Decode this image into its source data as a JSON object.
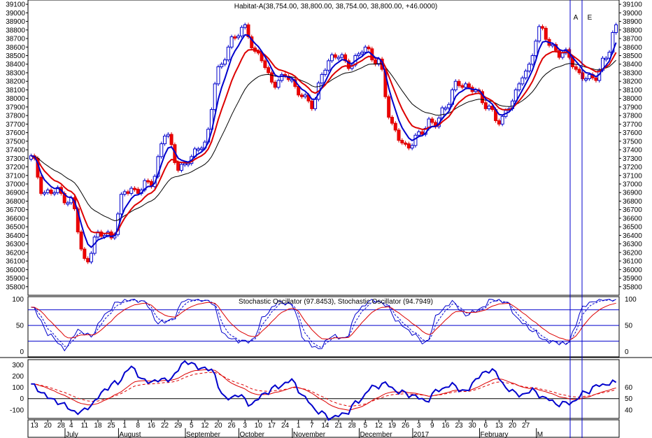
{
  "chart_data": [
    {
      "type": "candlestick",
      "title": "Habitat-A(38,754.00, 38,800.00, 38,754.00, 38,800.00, +46.0000)",
      "ylim": [
        35700,
        39150
      ],
      "y_ticks": [
        35800,
        35900,
        36000,
        36100,
        36200,
        36300,
        36400,
        36500,
        36600,
        36700,
        36800,
        36900,
        37000,
        37100,
        37200,
        37300,
        37400,
        37500,
        37600,
        37700,
        37800,
        37900,
        38000,
        38100,
        38200,
        38300,
        38400,
        38500,
        38600,
        38700,
        38800,
        38900,
        39000,
        39100
      ],
      "marker_labels": [
        "A",
        "E"
      ],
      "anchors": {
        "d": [
          0,
          4,
          8,
          12,
          16,
          20,
          24,
          28,
          32,
          36,
          40,
          44,
          48,
          52,
          56,
          60,
          64,
          68,
          72,
          76,
          80,
          84,
          88,
          92,
          96,
          100,
          104,
          108,
          112,
          116,
          120,
          124,
          128,
          132,
          136,
          140,
          144,
          148,
          152,
          156,
          160,
          164,
          168,
          172,
          175
        ],
        "c": [
          37300,
          36900,
          36900,
          36800,
          36100,
          36400,
          36400,
          36900,
          36950,
          37000,
          37600,
          37200,
          37300,
          37500,
          38300,
          38700,
          38800,
          38500,
          38200,
          38250,
          38100,
          37900,
          38400,
          38500,
          38400,
          38600,
          38400,
          37700,
          37400,
          37600,
          37700,
          37900,
          38200,
          38100,
          37950,
          37700,
          38000,
          38300,
          38800,
          38600,
          38500,
          38300,
          38200,
          38500,
          38800
        ]
      },
      "ma_fast_offset": -250,
      "ma_mid_offset": -320,
      "ma_slow_offset": -480,
      "grid": false
    },
    {
      "type": "line",
      "title": "Stochastic Oscillator (97.8453), Stochastic Oscillator (94.7949)",
      "ylim": [
        -10,
        105
      ],
      "y_ticks": [
        0,
        50,
        100
      ],
      "h_lines": [
        20,
        50,
        80
      ],
      "anchors": {
        "d": [
          0,
          6,
          10,
          14,
          18,
          22,
          26,
          30,
          34,
          38,
          42,
          46,
          50,
          54,
          58,
          62,
          66,
          70,
          74,
          78,
          82,
          86,
          90,
          94,
          98,
          102,
          106,
          110,
          114,
          118,
          122,
          126,
          130,
          134,
          138,
          142,
          146,
          150,
          154,
          160,
          166,
          170,
          175
        ],
        "k": [
          85,
          30,
          5,
          40,
          30,
          70,
          95,
          100,
          95,
          55,
          60,
          100,
          100,
          95,
          30,
          20,
          20,
          70,
          95,
          90,
          20,
          5,
          30,
          25,
          80,
          100,
          90,
          55,
          35,
          15,
          75,
          95,
          70,
          80,
          100,
          95,
          60,
          40,
          20,
          15,
          90,
          100,
          100
        ]
      }
    },
    {
      "type": "line",
      "title": "",
      "ylim": [
        -175,
        345
      ],
      "y_ticks_left": [
        -100,
        0,
        100,
        200,
        300
      ],
      "y_ticks_right": [
        40,
        50,
        60
      ],
      "h_lines": [
        0
      ],
      "anchors": {
        "d": [
          0,
          6,
          10,
          14,
          18,
          22,
          26,
          30,
          34,
          38,
          42,
          46,
          50,
          54,
          58,
          62,
          66,
          70,
          74,
          78,
          82,
          86,
          90,
          94,
          98,
          102,
          106,
          110,
          114,
          118,
          122,
          126,
          130,
          134,
          138,
          142,
          146,
          150,
          154,
          158,
          162,
          166,
          170,
          175
        ],
        "v": [
          120,
          0,
          -60,
          -130,
          -60,
          80,
          150,
          280,
          150,
          160,
          180,
          330,
          280,
          250,
          0,
          30,
          -50,
          50,
          110,
          160,
          0,
          -120,
          -170,
          -130,
          -20,
          100,
          130,
          60,
          30,
          -20,
          80,
          120,
          60,
          200,
          260,
          100,
          30,
          70,
          0,
          -50,
          -30,
          60,
          120,
          140
        ]
      }
    }
  ],
  "x_axis": {
    "day_labels": [
      {
        "d": 1,
        "t": "13"
      },
      {
        "d": 5,
        "t": "20"
      },
      {
        "d": 9,
        "t": "28"
      },
      {
        "d": 12,
        "t": "4"
      },
      {
        "d": 16,
        "t": "11"
      },
      {
        "d": 20,
        "t": "18"
      },
      {
        "d": 24,
        "t": "25"
      },
      {
        "d": 28,
        "t": "1"
      },
      {
        "d": 32,
        "t": "8"
      },
      {
        "d": 36,
        "t": "16"
      },
      {
        "d": 40,
        "t": "22"
      },
      {
        "d": 44,
        "t": "29"
      },
      {
        "d": 48,
        "t": "5"
      },
      {
        "d": 52,
        "t": "12"
      },
      {
        "d": 56,
        "t": "20"
      },
      {
        "d": 60,
        "t": "26"
      },
      {
        "d": 64,
        "t": "3"
      },
      {
        "d": 68,
        "t": "10"
      },
      {
        "d": 72,
        "t": "17"
      },
      {
        "d": 76,
        "t": "24"
      },
      {
        "d": 80,
        "t": "1"
      },
      {
        "d": 84,
        "t": "7"
      },
      {
        "d": 88,
        "t": "14"
      },
      {
        "d": 92,
        "t": "21"
      },
      {
        "d": 96,
        "t": "28"
      },
      {
        "d": 100,
        "t": "5"
      },
      {
        "d": 104,
        "t": "12"
      },
      {
        "d": 108,
        "t": "19"
      },
      {
        "d": 112,
        "t": "26"
      },
      {
        "d": 116,
        "t": "3"
      },
      {
        "d": 120,
        "t": "9"
      },
      {
        "d": 124,
        "t": "16"
      },
      {
        "d": 128,
        "t": "23"
      },
      {
        "d": 132,
        "t": "30"
      },
      {
        "d": 136,
        "t": "6"
      },
      {
        "d": 140,
        "t": "13"
      },
      {
        "d": 144,
        "t": "20"
      },
      {
        "d": 148,
        "t": "27"
      }
    ],
    "month_labels": [
      {
        "d": 11,
        "t": "July"
      },
      {
        "d": 27,
        "t": "August"
      },
      {
        "d": 47,
        "t": "September"
      },
      {
        "d": 63,
        "t": "October"
      },
      {
        "d": 79,
        "t": "November"
      },
      {
        "d": 99,
        "t": "December"
      },
      {
        "d": 115,
        "t": "2017"
      },
      {
        "d": 135,
        "t": "February"
      },
      {
        "d": 152,
        "t": "M"
      }
    ]
  }
}
